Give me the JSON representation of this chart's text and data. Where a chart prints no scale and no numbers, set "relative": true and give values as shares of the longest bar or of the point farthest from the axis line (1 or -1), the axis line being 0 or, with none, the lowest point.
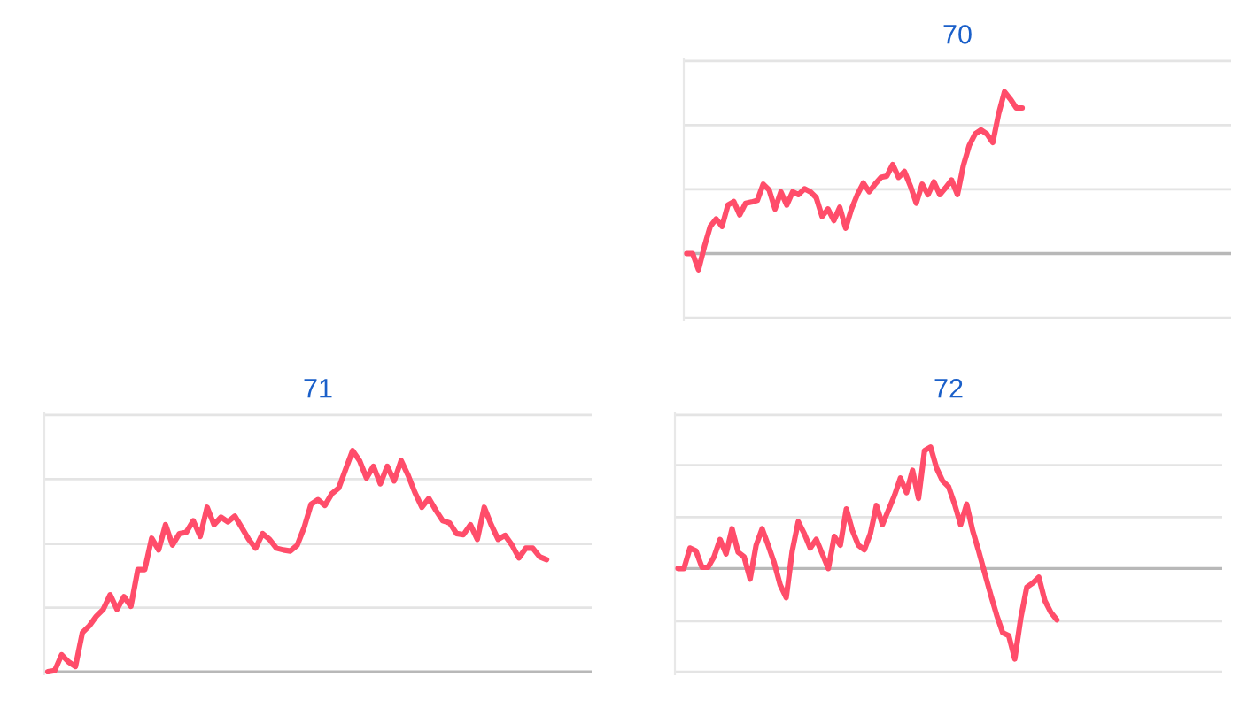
{
  "chart_data": [
    {
      "type": "line",
      "title": "70",
      "relative": true,
      "ref_lines": [
        {
          "axis": "y",
          "value": 1.19,
          "color": "#e4e4e4"
        },
        {
          "axis": "y",
          "value": 0.794,
          "color": "#e4e4e4"
        },
        {
          "axis": "y",
          "value": 0.397,
          "color": "#e4e4e4"
        },
        {
          "axis": "y",
          "value": -0.397,
          "color": "#e4e4e4"
        }
      ],
      "categories": [
        null,
        null,
        null,
        null,
        null,
        null,
        null,
        null,
        null,
        null,
        null,
        null,
        null,
        null,
        null,
        null,
        null,
        null,
        null,
        null,
        null,
        null,
        null,
        null,
        null,
        null,
        null,
        null,
        null,
        null,
        null,
        null,
        null,
        null,
        null,
        null,
        null,
        null,
        null,
        null,
        null,
        null,
        null,
        null,
        null,
        null,
        null,
        null,
        null,
        null,
        null,
        null,
        null,
        null,
        null,
        null,
        null,
        null,
        null,
        null,
        null,
        null,
        null,
        null,
        null,
        null,
        null,
        null,
        null,
        null,
        null,
        null,
        null,
        null,
        null,
        null,
        null,
        null,
        null,
        null,
        null,
        null,
        null,
        null,
        null,
        null,
        null,
        null,
        null,
        null,
        null,
        null,
        null
      ],
      "series": [
        {
          "color": "#ff4d6a",
          "values": [
            0,
            0,
            -0.1,
            0.043,
            0.168,
            0.214,
            0.168,
            0.3,
            0.321,
            0.239,
            0.311,
            0.318,
            0.329,
            0.429,
            0.393,
            0.275,
            0.382,
            0.3,
            0.382,
            0.364,
            0.4,
            0.382,
            0.346,
            0.229,
            0.275,
            0.204,
            0.286,
            0.157,
            0.275,
            0.364,
            0.436,
            0.382,
            0.429,
            0.471,
            0.479,
            0.55,
            0.471,
            0.507,
            0.418,
            0.311,
            0.429,
            0.364,
            0.443,
            0.364,
            0.407,
            0.454,
            0.364,
            0.543,
            0.668,
            0.739,
            0.764,
            0.739,
            0.686,
            0.864,
            1.0,
            0.954,
            0.9,
            0.9,
            null,
            null,
            null,
            null,
            null,
            null,
            null,
            null,
            null,
            null,
            null,
            null,
            null,
            null,
            null,
            null,
            null,
            null,
            null,
            null,
            null,
            null,
            null,
            null,
            null,
            null,
            null,
            null,
            null,
            null,
            null,
            null,
            null,
            null,
            null
          ]
        }
      ]
    },
    {
      "type": "line",
      "title": "71",
      "relative": true,
      "ref_lines": [
        {
          "axis": "y",
          "value": 1.161,
          "color": "#e4e4e4"
        },
        {
          "axis": "y",
          "value": 0.871,
          "color": "#e4e4e4"
        },
        {
          "axis": "y",
          "value": 0.578,
          "color": "#e4e4e4"
        },
        {
          "axis": "y",
          "value": 0.29,
          "color": "#e4e4e4"
        }
      ],
      "categories": [
        null,
        null,
        null,
        null,
        null,
        null,
        null,
        null,
        null,
        null,
        null,
        null,
        null,
        null,
        null,
        null,
        null,
        null,
        null,
        null,
        null,
        null,
        null,
        null,
        null,
        null,
        null,
        null,
        null,
        null,
        null,
        null,
        null,
        null,
        null,
        null,
        null,
        null,
        null,
        null,
        null,
        null,
        null,
        null,
        null,
        null,
        null,
        null,
        null,
        null,
        null,
        null,
        null,
        null,
        null,
        null,
        null,
        null,
        null,
        null,
        null,
        null,
        null,
        null,
        null,
        null,
        null,
        null,
        null,
        null,
        null,
        null,
        null,
        null,
        null,
        null,
        null,
        null,
        null
      ],
      "series": [
        {
          "color": "#ff4d6a",
          "values": [
            0,
            0.005,
            0.077,
            0.045,
            0.024,
            0.177,
            0.208,
            0.251,
            0.282,
            0.348,
            0.282,
            0.34,
            0.296,
            0.462,
            0.462,
            0.604,
            0.551,
            0.665,
            0.573,
            0.625,
            0.631,
            0.683,
            0.612,
            0.744,
            0.665,
            0.699,
            0.678,
            0.704,
            0.652,
            0.599,
            0.559,
            0.625,
            0.599,
            0.559,
            0.551,
            0.546,
            0.572,
            0.652,
            0.757,
            0.778,
            0.752,
            0.805,
            0.831,
            0.916,
            1.0,
            0.955,
            0.876,
            0.929,
            0.85,
            0.929,
            0.863,
            0.955,
            0.889,
            0.81,
            0.744,
            0.784,
            0.731,
            0.683,
            0.673,
            0.625,
            0.62,
            0.665,
            0.599,
            0.744,
            0.665,
            0.599,
            0.617,
            0.573,
            0.515,
            0.559,
            0.559,
            0.52,
            0.507,
            null,
            null,
            null,
            null,
            null,
            null
          ]
        }
      ]
    },
    {
      "type": "line",
      "title": "72",
      "relative": true,
      "ref_lines": [
        {
          "axis": "y",
          "value": 1.264,
          "color": "#e4e4e4"
        },
        {
          "axis": "y",
          "value": 0.851,
          "color": "#e4e4e4"
        },
        {
          "axis": "y",
          "value": 0.423,
          "color": "#e4e4e4"
        },
        {
          "axis": "y",
          "value": -0.433,
          "color": "#e4e4e4"
        },
        {
          "axis": "y",
          "value": -0.851,
          "color": "#e4e4e4"
        }
      ],
      "categories": [
        null,
        null,
        null,
        null,
        null,
        null,
        null,
        null,
        null,
        null,
        null,
        null,
        null,
        null,
        null,
        null,
        null,
        null,
        null,
        null,
        null,
        null,
        null,
        null,
        null,
        null,
        null,
        null,
        null,
        null,
        null,
        null,
        null,
        null,
        null,
        null,
        null,
        null,
        null,
        null,
        null,
        null,
        null,
        null,
        null,
        null,
        null,
        null,
        null,
        null,
        null,
        null,
        null,
        null,
        null,
        null,
        null,
        null,
        null,
        null,
        null,
        null,
        null,
        null,
        null,
        null,
        null,
        null,
        null,
        null,
        null,
        null,
        null,
        null,
        null,
        null,
        null,
        null,
        null,
        null,
        null,
        null,
        null,
        null,
        null,
        null,
        null,
        null,
        null,
        null,
        null
      ],
      "series": [
        {
          "color": "#ff4d6a",
          "values": [
            0,
            0,
            0.168,
            0.144,
            0.01,
            0.01,
            0.096,
            0.239,
            0.12,
            0.327,
            0.135,
            0.096,
            -0.087,
            0.192,
            0.327,
            0.192,
            0.048,
            -0.135,
            -0.24,
            0.144,
            0.385,
            0.288,
            0.168,
            0.24,
            0.12,
            0,
            0.264,
            0.192,
            0.49,
            0.313,
            0.192,
            0.154,
            0.288,
            0.519,
            0.361,
            0.481,
            0.601,
            0.745,
            0.625,
            0.808,
            0.577,
            0.971,
            1.0,
            0.827,
            0.721,
            0.673,
            0.529,
            0.361,
            0.529,
            0.313,
            0.144,
            -0.038,
            -0.216,
            -0.385,
            -0.529,
            -0.553,
            -0.745,
            -0.409,
            -0.154,
            -0.12,
            -0.072,
            -0.264,
            -0.361,
            -0.423,
            null,
            null,
            null,
            null,
            null,
            null,
            null,
            null,
            null,
            null,
            null,
            null,
            null,
            null,
            null,
            null,
            null,
            null,
            null,
            null,
            null,
            null,
            null,
            null,
            null,
            null,
            null
          ]
        }
      ]
    }
  ]
}
